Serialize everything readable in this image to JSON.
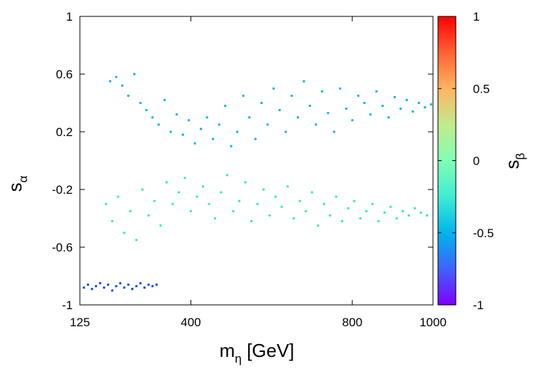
{
  "chart_data": {
    "type": "scatter",
    "title": "",
    "xlabel": {
      "base": "m",
      "sub": "η",
      "suffix": " [GeV]"
    },
    "ylabel": {
      "base": "s",
      "sub": "α"
    },
    "colorbar_label": {
      "base": "s",
      "sub": "β"
    },
    "xlim": [
      125,
      1000
    ],
    "ylim": [
      -1,
      1
    ],
    "clim": [
      -1,
      1
    ],
    "xticks": [
      125,
      400,
      800,
      1000
    ],
    "xtick_labels": [
      "125",
      "400",
      "800",
      "1000"
    ],
    "yticks": [
      -1,
      -0.6,
      -0.2,
      0.2,
      0.6,
      1
    ],
    "ytick_labels": [
      "-1",
      "-0.6",
      "-0.2",
      "0.2",
      "0.6",
      "1"
    ],
    "cticks": [
      -1,
      -0.5,
      0,
      0.5,
      1
    ],
    "ctick_labels": [
      "-1",
      "-0.5",
      "0",
      "0.5",
      "1"
    ],
    "colormap": "rainbow",
    "grid": false,
    "legend": "none",
    "series": [
      {
        "name": "upper-cyan",
        "s_beta": -0.5,
        "points": [
          [
            200,
            0.55
          ],
          [
            215,
            0.58
          ],
          [
            230,
            0.52
          ],
          [
            245,
            0.45
          ],
          [
            260,
            0.6
          ],
          [
            275,
            0.4
          ],
          [
            290,
            0.35
          ],
          [
            305,
            0.3
          ],
          [
            320,
            0.25
          ],
          [
            335,
            0.42
          ],
          [
            350,
            0.2
          ],
          [
            365,
            0.32
          ],
          [
            380,
            0.18
          ],
          [
            395,
            0.28
          ],
          [
            410,
            0.12
          ],
          [
            425,
            0.22
          ],
          [
            440,
            0.3
          ],
          [
            455,
            0.15
          ],
          [
            470,
            0.25
          ],
          [
            485,
            0.38
          ],
          [
            500,
            0.1
          ],
          [
            515,
            0.2
          ],
          [
            530,
            0.45
          ],
          [
            545,
            0.3
          ],
          [
            560,
            0.15
          ],
          [
            575,
            0.4
          ],
          [
            590,
            0.25
          ],
          [
            605,
            0.5
          ],
          [
            620,
            0.35
          ],
          [
            635,
            0.2
          ],
          [
            650,
            0.45
          ],
          [
            665,
            0.3
          ],
          [
            680,
            0.55
          ],
          [
            695,
            0.38
          ],
          [
            710,
            0.25
          ],
          [
            725,
            0.48
          ],
          [
            740,
            0.33
          ],
          [
            755,
            0.2
          ],
          [
            770,
            0.5
          ],
          [
            785,
            0.36
          ],
          [
            800,
            0.28
          ],
          [
            815,
            0.45
          ],
          [
            830,
            0.4
          ],
          [
            845,
            0.32
          ],
          [
            860,
            0.48
          ],
          [
            875,
            0.38
          ],
          [
            890,
            0.3
          ],
          [
            905,
            0.44
          ],
          [
            920,
            0.36
          ],
          [
            935,
            0.42
          ],
          [
            950,
            0.34
          ],
          [
            965,
            0.4
          ],
          [
            980,
            0.37
          ],
          [
            995,
            0.39
          ]
        ]
      },
      {
        "name": "middle-green-yellow",
        "s_beta": 0.15,
        "points": [
          [
            190,
            -0.3
          ],
          [
            205,
            -0.42
          ],
          [
            220,
            -0.25
          ],
          [
            235,
            -0.5
          ],
          [
            250,
            -0.35
          ],
          [
            265,
            -0.55
          ],
          [
            280,
            -0.2
          ],
          [
            295,
            -0.38
          ],
          [
            310,
            -0.28
          ],
          [
            325,
            -0.45
          ],
          [
            340,
            -0.15
          ],
          [
            355,
            -0.3
          ],
          [
            370,
            -0.22
          ],
          [
            385,
            -0.12
          ],
          [
            400,
            -0.35
          ],
          [
            415,
            -0.25
          ],
          [
            430,
            -0.18
          ],
          [
            445,
            -0.3
          ],
          [
            460,
            -0.4
          ],
          [
            475,
            -0.22
          ],
          [
            490,
            -0.1
          ],
          [
            505,
            -0.35
          ],
          [
            520,
            -0.28
          ],
          [
            535,
            -0.15
          ],
          [
            550,
            -0.42
          ],
          [
            565,
            -0.3
          ],
          [
            580,
            -0.2
          ],
          [
            595,
            -0.38
          ],
          [
            610,
            -0.25
          ],
          [
            625,
            -0.32
          ],
          [
            640,
            -0.18
          ],
          [
            655,
            -0.4
          ],
          [
            670,
            -0.28
          ],
          [
            685,
            -0.35
          ],
          [
            700,
            -0.22
          ],
          [
            715,
            -0.45
          ],
          [
            730,
            -0.3
          ],
          [
            745,
            -0.38
          ],
          [
            760,
            -0.25
          ],
          [
            775,
            -0.42
          ],
          [
            790,
            -0.33
          ],
          [
            805,
            -0.28
          ],
          [
            820,
            -0.4
          ],
          [
            835,
            -0.35
          ],
          [
            850,
            -0.3
          ],
          [
            865,
            -0.42
          ],
          [
            880,
            -0.36
          ],
          [
            895,
            -0.32
          ],
          [
            910,
            -0.4
          ],
          [
            925,
            -0.35
          ],
          [
            940,
            -0.38
          ],
          [
            955,
            -0.33
          ],
          [
            970,
            -0.36
          ],
          [
            985,
            -0.38
          ]
        ]
      },
      {
        "name": "lower-violet",
        "s_beta": -0.82,
        "points": [
          [
            135,
            -0.88
          ],
          [
            145,
            -0.86
          ],
          [
            155,
            -0.89
          ],
          [
            165,
            -0.87
          ],
          [
            175,
            -0.85
          ],
          [
            185,
            -0.88
          ],
          [
            195,
            -0.86
          ],
          [
            205,
            -0.9
          ],
          [
            215,
            -0.87
          ],
          [
            225,
            -0.85
          ],
          [
            235,
            -0.88
          ],
          [
            245,
            -0.86
          ],
          [
            255,
            -0.89
          ],
          [
            265,
            -0.87
          ],
          [
            275,
            -0.85
          ],
          [
            285,
            -0.88
          ],
          [
            295,
            -0.86
          ],
          [
            305,
            -0.87
          ],
          [
            315,
            -0.86
          ]
        ]
      }
    ]
  }
}
